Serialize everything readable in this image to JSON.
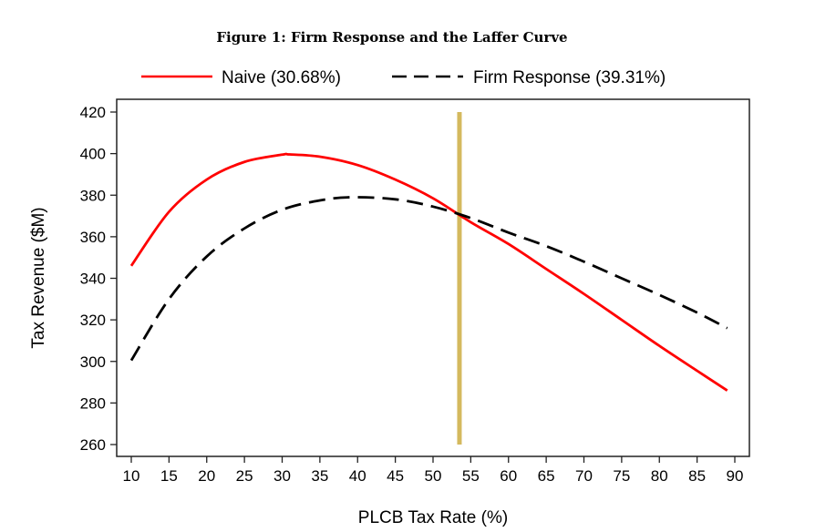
{
  "chart_data": {
    "type": "line",
    "title": "Figure 1: Firm Response and the Laffer Curve",
    "xlabel": "PLCB Tax Rate (%)",
    "ylabel": "Tax Revenue ($M)",
    "xlim": [
      10,
      90
    ],
    "ylim": [
      260,
      420
    ],
    "xticks": [
      "10",
      "15",
      "20",
      "25",
      "30",
      "35",
      "40",
      "45",
      "50",
      "55",
      "60",
      "65",
      "70",
      "75",
      "80",
      "85",
      "90"
    ],
    "yticks": [
      "260",
      "280",
      "300",
      "320",
      "340",
      "360",
      "380",
      "400",
      "420"
    ],
    "grid": false,
    "legend_position": "top",
    "series": [
      {
        "name": "Naive (30.68%)",
        "color": "#ff0000",
        "style": "solid",
        "x": [
          10,
          15,
          20,
          25,
          30,
          31,
          35,
          40,
          45,
          50,
          55,
          60,
          65,
          70,
          75,
          80,
          85,
          89
        ],
        "y": [
          346,
          372,
          387.5,
          396,
          399.5,
          399.6,
          398.5,
          394.5,
          387.5,
          378.5,
          367,
          356.5,
          344.5,
          332.5,
          320,
          307.5,
          295.5,
          286
        ]
      },
      {
        "name": "Firm Response (39.31%)",
        "color": "#000000",
        "style": "dashed",
        "x": [
          10,
          15,
          20,
          25,
          30,
          35,
          39.3,
          45,
          50,
          55,
          60,
          65,
          70,
          75,
          80,
          85,
          89
        ],
        "y": [
          300.5,
          330,
          350.5,
          364,
          373,
          377.5,
          379,
          378,
          374.5,
          369,
          362,
          355.5,
          348,
          340,
          332,
          323.5,
          316
        ]
      }
    ],
    "reference_line": {
      "x": 53.5,
      "y_range": [
        260,
        420
      ],
      "color": "#d4b95e"
    }
  }
}
